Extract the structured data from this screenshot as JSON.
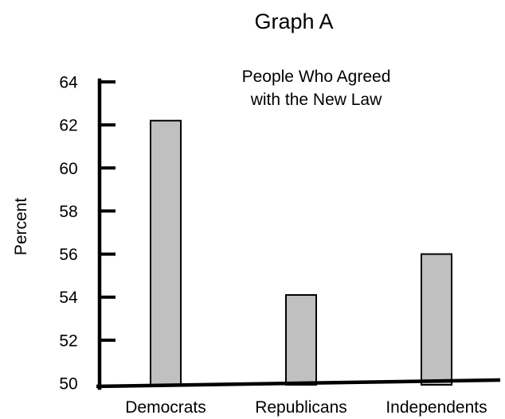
{
  "chart_data": {
    "type": "bar",
    "heading": "Graph A",
    "title_lines": [
      "People Who Agreed",
      "with the New Law"
    ],
    "ylabel": "Percent",
    "xlabel": "",
    "categories": [
      "Democrats",
      "Republicans",
      "Independents"
    ],
    "values": [
      62.2,
      54.1,
      56
    ],
    "ylim": [
      50,
      64
    ],
    "yticks": [
      50,
      52,
      54,
      56,
      58,
      60,
      62,
      64
    ],
    "grid": false,
    "legend": "none",
    "colors": {
      "bar_fill": "#c0c0c0",
      "bar_stroke": "#000000",
      "axis": "#000000",
      "text": "#000000"
    }
  }
}
